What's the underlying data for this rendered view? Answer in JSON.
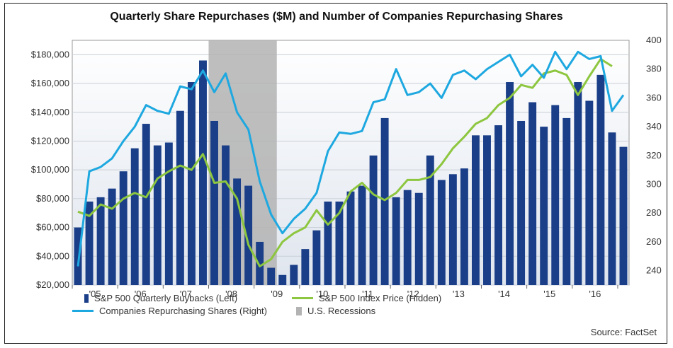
{
  "chart_data": {
    "type": "bar+line",
    "title": "Quarterly Share Repurchases ($M) and Number of Companies Repurchasing Shares",
    "y_left": {
      "ylim": [
        20000,
        190000
      ],
      "ticks": [
        20000,
        40000,
        60000,
        80000,
        100000,
        120000,
        140000,
        160000,
        180000
      ],
      "tick_labels": [
        "$20,000",
        "$40,000",
        "$60,000",
        "$80,000",
        "$100,000",
        "$120,000",
        "$140,000",
        "$160,000",
        "$180,000"
      ]
    },
    "y_right": {
      "ylim": [
        230,
        400
      ],
      "ticks": [
        240,
        260,
        280,
        300,
        320,
        340,
        360,
        380,
        400
      ],
      "tick_labels": [
        "240",
        "260",
        "280",
        "300",
        "320",
        "340",
        "360",
        "380",
        "400"
      ]
    },
    "x_tick_labels": [
      "'05",
      "'06",
      "'07",
      "'08",
      "'09",
      "'10",
      "'11",
      "'12",
      "'13",
      "'14",
      "'15",
      "'16"
    ],
    "quarters_per_year": 4,
    "recession": {
      "start_quarter": 12,
      "end_quarter": 18
    },
    "series": [
      {
        "name": "S&P 500 Quarterly Buybacks (Left)",
        "kind": "bar",
        "color": "#1a3e88",
        "axis": "left",
        "values": [
          60000,
          78000,
          81000,
          87000,
          99000,
          115000,
          132000,
          117000,
          119000,
          141000,
          161000,
          176000,
          134000,
          117000,
          94000,
          89000,
          50000,
          32000,
          27000,
          34000,
          45000,
          58000,
          78000,
          78000,
          85000,
          89000,
          110000,
          136000,
          81000,
          86000,
          84000,
          110000,
          93000,
          97000,
          101000,
          124000,
          124000,
          131000,
          161000,
          134000,
          147000,
          130000,
          145000,
          136000,
          161000,
          148000,
          166000,
          126000,
          116000
        ]
      },
      {
        "name": "Companies Repurchasing Shares (Right)",
        "kind": "line",
        "color": "#1ea8e0",
        "axis": "right",
        "values": [
          243,
          309,
          312,
          318,
          330,
          340,
          355,
          351,
          349,
          368,
          366,
          379,
          364,
          377,
          350,
          338,
          302,
          279,
          266,
          276,
          283,
          294,
          323,
          336,
          335,
          337,
          357,
          359,
          380,
          362,
          364,
          370,
          360,
          376,
          379,
          373,
          380,
          385,
          390,
          375,
          383,
          374,
          392,
          380,
          392,
          387,
          389,
          351,
          362
        ]
      },
      {
        "name": "S&P 500 Index Price (Hidden)",
        "kind": "line",
        "color": "#8dc63f",
        "axis": "right",
        "values": [
          281,
          278,
          286,
          283,
          290,
          294,
          291,
          304,
          309,
          313,
          310,
          321,
          301,
          302,
          290,
          258,
          243,
          248,
          260,
          266,
          270,
          282,
          272,
          280,
          295,
          301,
          293,
          289,
          294,
          303,
          303,
          305,
          314,
          325,
          333,
          342,
          346,
          355,
          360,
          369,
          367,
          377,
          379,
          376,
          362,
          375,
          387,
          382
        ]
      }
    ],
    "legend": {
      "placement": "bottom",
      "entries": [
        {
          "label": "S&P 500 Quarterly Buybacks (Left)",
          "symbol": "bar"
        },
        {
          "label": "S&P 500 Index Price (Hidden)",
          "symbol": "line-green"
        },
        {
          "label": "Companies Repurchasing Shares (Right)",
          "symbol": "line-blue"
        },
        {
          "label": "U.S. Recessions",
          "symbol": "recession"
        }
      ]
    },
    "source": "Source: FactSet"
  }
}
